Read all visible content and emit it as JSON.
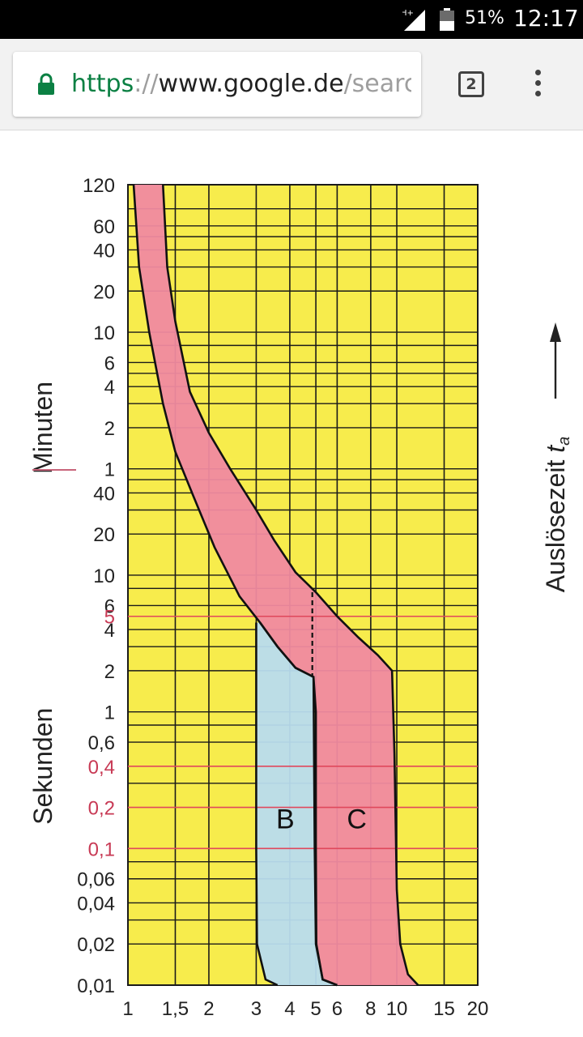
{
  "status_bar": {
    "network": "H+",
    "battery": "51%",
    "time": "12:17",
    "icons": [
      "signal-icon",
      "battery-icon"
    ]
  },
  "browser": {
    "url_scheme": "https",
    "url_separator": "://",
    "url_host": "www.google.de",
    "url_path": "/searc",
    "tab_count": "2",
    "icons": [
      "lock-icon",
      "overflow-menu-icon"
    ],
    "colors": {
      "secure": "#0b8043"
    }
  },
  "chart_data": {
    "type": "area",
    "title": "",
    "xlabel": "",
    "ylabel": "Auslösezeit ta",
    "y_axis_label_main": "Auslösezeit ",
    "y_axis_label_sub": "a",
    "y_axis_label_italic": "t",
    "y_unit_labels": [
      "Minuten",
      "Sekunden"
    ],
    "x_scale": "log",
    "y_scale": "log",
    "xlim": [
      1,
      20
    ],
    "ylim": [
      0.01,
      7200
    ],
    "x_ticks": [
      {
        "value": 1,
        "label": "1"
      },
      {
        "value": 1.5,
        "label": "1,5"
      },
      {
        "value": 2,
        "label": "2"
      },
      {
        "value": 3,
        "label": "3"
      },
      {
        "value": 4,
        "label": "4"
      },
      {
        "value": 5,
        "label": "5"
      },
      {
        "value": 6,
        "label": "6"
      },
      {
        "value": 8,
        "label": "8"
      },
      {
        "value": 10,
        "label": "10"
      },
      {
        "value": 15,
        "label": "15"
      },
      {
        "value": 20,
        "label": "20"
      }
    ],
    "y_ticks_minutes": [
      {
        "value": 7200,
        "label": "120"
      },
      {
        "value": 3600,
        "label": "60"
      },
      {
        "value": 2400,
        "label": "40"
      },
      {
        "value": 1200,
        "label": "20"
      },
      {
        "value": 600,
        "label": "10"
      },
      {
        "value": 360,
        "label": "6"
      },
      {
        "value": 240,
        "label": "4"
      },
      {
        "value": 120,
        "label": "2"
      },
      {
        "value": 60,
        "label": "1"
      }
    ],
    "y_ticks_seconds": [
      {
        "value": 40,
        "label": "40",
        "red": false
      },
      {
        "value": 20,
        "label": "20",
        "red": false
      },
      {
        "value": 10,
        "label": "10",
        "red": false
      },
      {
        "value": 6,
        "label": "6",
        "red": false
      },
      {
        "value": 5,
        "label": "5",
        "red": true
      },
      {
        "value": 4,
        "label": "4",
        "red": false
      },
      {
        "value": 2,
        "label": "2",
        "red": false
      },
      {
        "value": 1,
        "label": "1",
        "red": false
      },
      {
        "value": 0.6,
        "label": "0,6",
        "red": false
      },
      {
        "value": 0.4,
        "label": "0,4",
        "red": true
      },
      {
        "value": 0.2,
        "label": "0,2",
        "red": true
      },
      {
        "value": 0.1,
        "label": "0,1",
        "red": true
      },
      {
        "value": 0.06,
        "label": "0,06",
        "red": false
      },
      {
        "value": 0.04,
        "label": "0,04",
        "red": false
      },
      {
        "value": 0.02,
        "label": "0,02",
        "red": false
      },
      {
        "value": 0.01,
        "label": "0,01",
        "red": false
      }
    ],
    "red_gridlines_y": [
      5,
      0.4,
      0.2,
      0.1
    ],
    "black_gridlines_y": [
      7200,
      3600,
      2400,
      1200,
      600,
      360,
      240,
      120,
      60,
      40,
      20,
      10,
      6,
      4,
      2,
      1,
      0.6,
      0.04,
      0.02,
      0.01,
      4800,
      3000,
      1800,
      480,
      300,
      180,
      50,
      30,
      8,
      3,
      0.8,
      0.3,
      0.08,
      0.06,
      0.03
    ],
    "series": [
      {
        "name": "C",
        "color": "#f08aa0",
        "lower_boundary": [
          [
            1.05,
            7200
          ],
          [
            1.1,
            1800
          ],
          [
            1.2,
            600
          ],
          [
            1.35,
            180
          ],
          [
            1.5,
            80
          ],
          [
            1.75,
            38
          ],
          [
            2.1,
            16
          ],
          [
            2.6,
            7
          ],
          [
            3.1,
            4.5
          ],
          [
            3.6,
            3.0
          ],
          [
            4.2,
            2.1
          ],
          [
            4.9,
            1.8
          ],
          [
            5,
            1.0
          ],
          [
            5,
            0.1
          ],
          [
            5.02,
            0.02
          ],
          [
            5.3,
            0.011
          ],
          [
            6,
            0.01
          ]
        ],
        "upper_boundary": [
          [
            1.35,
            7200
          ],
          [
            1.4,
            1800
          ],
          [
            1.5,
            720
          ],
          [
            1.7,
            220
          ],
          [
            2,
            110
          ],
          [
            2.4,
            60
          ],
          [
            3,
            30
          ],
          [
            3.5,
            18
          ],
          [
            4.2,
            10.5
          ],
          [
            5,
            7.5
          ],
          [
            6,
            5
          ],
          [
            7.2,
            3.5
          ],
          [
            8.5,
            2.6
          ],
          [
            9.6,
            2.0
          ],
          [
            9.8,
            0.5
          ],
          [
            10,
            0.05
          ],
          [
            10.3,
            0.02
          ],
          [
            11,
            0.012
          ],
          [
            12,
            0.01
          ]
        ]
      },
      {
        "name": "B",
        "color": "#b8dcee",
        "lower_boundary": [
          [
            3,
            4.5
          ],
          [
            3,
            0.1
          ],
          [
            3.02,
            0.02
          ],
          [
            3.25,
            0.011
          ],
          [
            3.6,
            0.01
          ]
        ],
        "upper_boundary": [
          [
            3.1,
            4.5
          ],
          [
            3.6,
            3.0
          ],
          [
            4.2,
            2.1
          ],
          [
            4.9,
            1.8
          ],
          [
            4.95,
            0.1
          ],
          [
            5,
            0.02
          ],
          [
            5.3,
            0.011
          ],
          [
            6,
            0.01
          ]
        ]
      }
    ],
    "background_color": "#f7ec4c"
  }
}
